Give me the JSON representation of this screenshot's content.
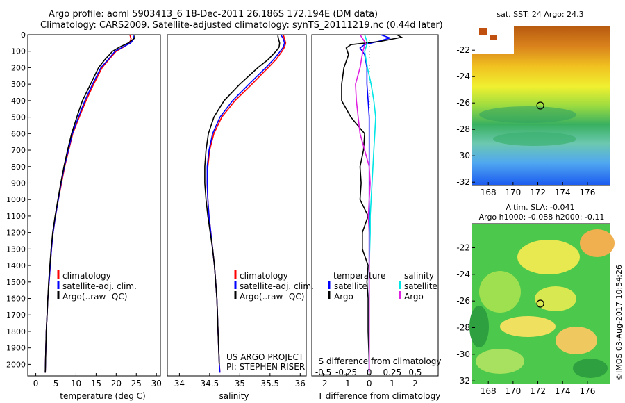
{
  "header": {
    "line1": "Argo profile: aoml 5903413_6 18-Dec-2011 26.186S 172.194E (DM data)",
    "line2": "Climatology: CARS2009. Satellite-adjusted climatology: synTS_20111219.nc (0.44d later)"
  },
  "colors": {
    "climatology": "#ff0000",
    "satellite": "#0000ff",
    "argo": "#000000",
    "sal_satellite": "#00e5e5",
    "sal_argo": "#e020e0"
  },
  "chart_data": [
    {
      "type": "line",
      "id": "temperature",
      "xlabel": "temperature (deg C)",
      "ylabel": "",
      "xlim": [
        -2,
        31
      ],
      "ylim": [
        2070,
        0
      ],
      "xticks": [
        "0",
        "5",
        "10",
        "15",
        "20",
        "25",
        "30"
      ],
      "yticks": [
        "0",
        "100",
        "200",
        "300",
        "400",
        "500",
        "600",
        "700",
        "800",
        "900",
        "1000",
        "1100",
        "1200",
        "1300",
        "1400",
        "1500",
        "1600",
        "1700",
        "1800",
        "1900",
        "2000"
      ],
      "legend": [
        "climatology",
        "satellite-adj. clim.",
        "Argo(..raw -QC)"
      ],
      "series": [
        {
          "name": "climatology",
          "color": "#ff0000",
          "x": [
            23.4,
            23.7,
            23.3,
            21.8,
            20.0,
            18.2,
            16.5,
            14.4,
            12.5,
            10.8,
            9.2,
            8.2,
            7.2,
            6.4,
            5.6,
            4.9,
            4.3,
            3.9,
            3.6,
            3.3,
            3.0,
            2.8,
            2.6,
            2.5,
            2.4,
            2.35
          ],
          "y": [
            0,
            25,
            50,
            75,
            100,
            150,
            200,
            300,
            400,
            500,
            600,
            700,
            800,
            900,
            1000,
            1100,
            1200,
            1300,
            1400,
            1500,
            1600,
            1700,
            1800,
            1900,
            2000,
            2050
          ]
        },
        {
          "name": "satellite-adj. clim.",
          "color": "#0000ff",
          "x": [
            24.2,
            24.4,
            23.6,
            21.6,
            19.7,
            18.0,
            16.2,
            14.1,
            12.2,
            10.6,
            9.1,
            8.1,
            7.1,
            6.3,
            5.6,
            4.9,
            4.3,
            3.9,
            3.6,
            3.3,
            3.0,
            2.8,
            2.6,
            2.5,
            2.4,
            2.35
          ],
          "y": [
            0,
            25,
            50,
            75,
            100,
            150,
            200,
            300,
            400,
            500,
            600,
            700,
            800,
            900,
            1000,
            1100,
            1200,
            1300,
            1400,
            1500,
            1600,
            1700,
            1800,
            1900,
            2000,
            2050
          ]
        },
        {
          "name": "Argo(..raw -QC)",
          "color": "#000000",
          "x": [
            24.6,
            24.6,
            23.0,
            20.8,
            19.1,
            17.2,
            15.6,
            13.6,
            11.6,
            10.2,
            8.9,
            7.9,
            7.0,
            6.2,
            5.5,
            4.8,
            4.2,
            3.8,
            3.5,
            3.2,
            3.0,
            2.8,
            2.6,
            2.5,
            2.4,
            2.35
          ],
          "y": [
            5,
            20,
            50,
            75,
            100,
            150,
            200,
            300,
            400,
            500,
            600,
            700,
            800,
            900,
            1000,
            1100,
            1200,
            1300,
            1400,
            1500,
            1600,
            1700,
            1800,
            1900,
            2000,
            2050
          ]
        }
      ]
    },
    {
      "type": "line",
      "id": "salinity",
      "xlabel": "salinity",
      "ylabel": "",
      "xlim": [
        33.8,
        36.1
      ],
      "ylim": [
        2070,
        0
      ],
      "xticks": [
        "34",
        "34.5",
        "35",
        "35.5",
        "36"
      ],
      "legend": [
        "climatology",
        "satellite-adj. clim.",
        "Argo(..raw -QC)"
      ],
      "notes": [
        "US ARGO PROJECT",
        "PI: STEPHEN RISER"
      ],
      "series": [
        {
          "name": "climatology",
          "color": "#ff0000",
          "x": [
            35.72,
            35.74,
            35.76,
            35.74,
            35.7,
            35.6,
            35.47,
            35.2,
            34.92,
            34.7,
            34.57,
            34.5,
            34.47,
            34.46,
            34.47,
            34.49,
            34.52,
            34.55,
            34.58,
            34.6,
            34.62,
            34.63,
            34.64,
            34.65,
            34.66,
            34.67
          ],
          "y": [
            0,
            25,
            50,
            75,
            100,
            150,
            200,
            300,
            400,
            500,
            600,
            700,
            800,
            900,
            1000,
            1100,
            1200,
            1300,
            1400,
            1500,
            1600,
            1700,
            1800,
            1900,
            2000,
            2050
          ]
        },
        {
          "name": "satellite-adj. clim.",
          "color": "#0000ff",
          "x": [
            35.68,
            35.72,
            35.74,
            35.72,
            35.67,
            35.56,
            35.43,
            35.15,
            34.88,
            34.67,
            34.55,
            34.49,
            34.46,
            34.46,
            34.47,
            34.49,
            34.52,
            34.55,
            34.58,
            34.6,
            34.62,
            34.63,
            34.64,
            34.65,
            34.66,
            34.67
          ],
          "y": [
            0,
            25,
            50,
            75,
            100,
            150,
            200,
            300,
            400,
            500,
            600,
            700,
            800,
            900,
            1000,
            1100,
            1200,
            1300,
            1400,
            1500,
            1600,
            1700,
            1800,
            1900,
            2000,
            2050
          ]
        },
        {
          "name": "Argo(..raw -QC)",
          "color": "#000000",
          "x": [
            35.63,
            35.64,
            35.66,
            35.65,
            35.6,
            35.47,
            35.3,
            35.0,
            34.74,
            34.57,
            34.48,
            34.44,
            34.42,
            34.42,
            34.44,
            34.47,
            34.51,
            34.55,
            34.58,
            34.6,
            34.62,
            34.63,
            34.64,
            34.65,
            34.66
          ],
          "y": [
            5,
            25,
            50,
            75,
            100,
            150,
            200,
            300,
            400,
            500,
            600,
            700,
            800,
            900,
            1000,
            1100,
            1200,
            1300,
            1400,
            1500,
            1600,
            1700,
            1800,
            1900,
            2000
          ]
        }
      ]
    },
    {
      "type": "line",
      "id": "differences",
      "xlabel": "T difference from climatology",
      "xlabel2": "S difference from climatology",
      "xlim": [
        -2.5,
        3.0
      ],
      "ylim": [
        2070,
        0
      ],
      "xticks": [
        "-2",
        "-1",
        "0",
        "1",
        "2"
      ],
      "xticks2": [
        "-0.5",
        "-0.25",
        "0",
        "0.25",
        "0.5"
      ],
      "legend_t": {
        "title": "temperature",
        "items": [
          "satellite",
          "Argo"
        ]
      },
      "legend_s": {
        "title": "salinity",
        "items": [
          "satellite",
          "Argo"
        ]
      },
      "series": [
        {
          "name": "T satellite",
          "color": "#0000ff",
          "x": [
            0.5,
            0.9,
            0.4,
            -0.2,
            -0.4,
            -0.2,
            -0.1,
            -0.1,
            -0.05,
            0,
            0,
            0,
            0,
            0,
            0,
            0,
            0,
            0,
            0,
            0,
            0,
            0
          ],
          "y": [
            0,
            20,
            40,
            60,
            80,
            120,
            200,
            300,
            400,
            500,
            600,
            700,
            800,
            900,
            1000,
            1200,
            1400,
            1600,
            1800,
            1900,
            2000,
            2050
          ]
        },
        {
          "name": "T Argo",
          "color": "#000000",
          "x": [
            1.2,
            1.4,
            0.5,
            -0.8,
            -1.0,
            -0.9,
            -1.1,
            -1.2,
            -1.2,
            -0.8,
            -0.2,
            -0.25,
            -0.4,
            -0.35,
            -0.4,
            -0.05,
            -0.3,
            -0.3,
            -0.05,
            -0.1,
            -0.05,
            -0.05,
            0,
            0
          ],
          "y": [
            0,
            15,
            40,
            60,
            80,
            120,
            200,
            300,
            400,
            500,
            600,
            700,
            800,
            900,
            1000,
            1100,
            1200,
            1300,
            1400,
            1500,
            1600,
            1800,
            2000,
            2050
          ]
        },
        {
          "name": "S satellite",
          "color": "#00e5e5",
          "x": [
            -0.05,
            -0.02,
            -0.05,
            -0.02,
            0.02,
            0.05,
            0.07,
            0.06,
            0.05,
            0.04,
            0.03,
            0.02,
            0.01,
            0.01,
            0,
            0,
            0
          ],
          "y": [
            0,
            50,
            100,
            200,
            300,
            400,
            500,
            600,
            700,
            800,
            900,
            1000,
            1100,
            1200,
            1400,
            1800,
            2050
          ]
        },
        {
          "name": "S Argo",
          "color": "#e020e0",
          "x": [
            -0.1,
            -0.04,
            -0.07,
            -0.1,
            -0.15,
            -0.14,
            -0.12,
            -0.1,
            -0.05,
            0,
            0.01,
            0,
            -0.01,
            0,
            0,
            0,
            0
          ],
          "y": [
            0,
            50,
            100,
            200,
            300,
            400,
            500,
            600,
            700,
            800,
            900,
            1000,
            1100,
            1200,
            1400,
            1800,
            2050
          ]
        }
      ]
    },
    {
      "type": "heatmap",
      "id": "sst_map",
      "title": "sat. SST: 24 Argo: 24.3",
      "xlim": [
        166.7,
        177.8
      ],
      "ylim": [
        -32.2,
        -20.2
      ],
      "xticks": [
        "168",
        "170",
        "172",
        "174",
        "176"
      ],
      "yticks": [
        "-22",
        "-24",
        "-26",
        "-28",
        "-30",
        "-32"
      ],
      "marker": {
        "lon": 172.2,
        "lat": -26.2
      }
    },
    {
      "type": "heatmap",
      "id": "sla_map",
      "title": "Altim. SLA: -0.041",
      "subtitle": "Argo h1000: -0.088 h2000: -0.11",
      "xlim": [
        166.7,
        177.8
      ],
      "ylim": [
        -32.2,
        -20.2
      ],
      "xticks": [
        "168",
        "170",
        "172",
        "174",
        "176"
      ],
      "yticks": [
        "-22",
        "-24",
        "-26",
        "-28",
        "-30",
        "-32"
      ],
      "marker": {
        "lon": 172.2,
        "lat": -26.2
      }
    }
  ],
  "footer": {
    "credit": "©IMOS 03-Aug-2017 10:54:26"
  }
}
